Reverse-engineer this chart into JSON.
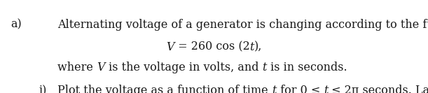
{
  "background_color": "#ffffff",
  "text_color": "#1a1a1a",
  "font_size": 11.5,
  "fig_width": 6.11,
  "fig_height": 1.33,
  "dpi": 100
}
